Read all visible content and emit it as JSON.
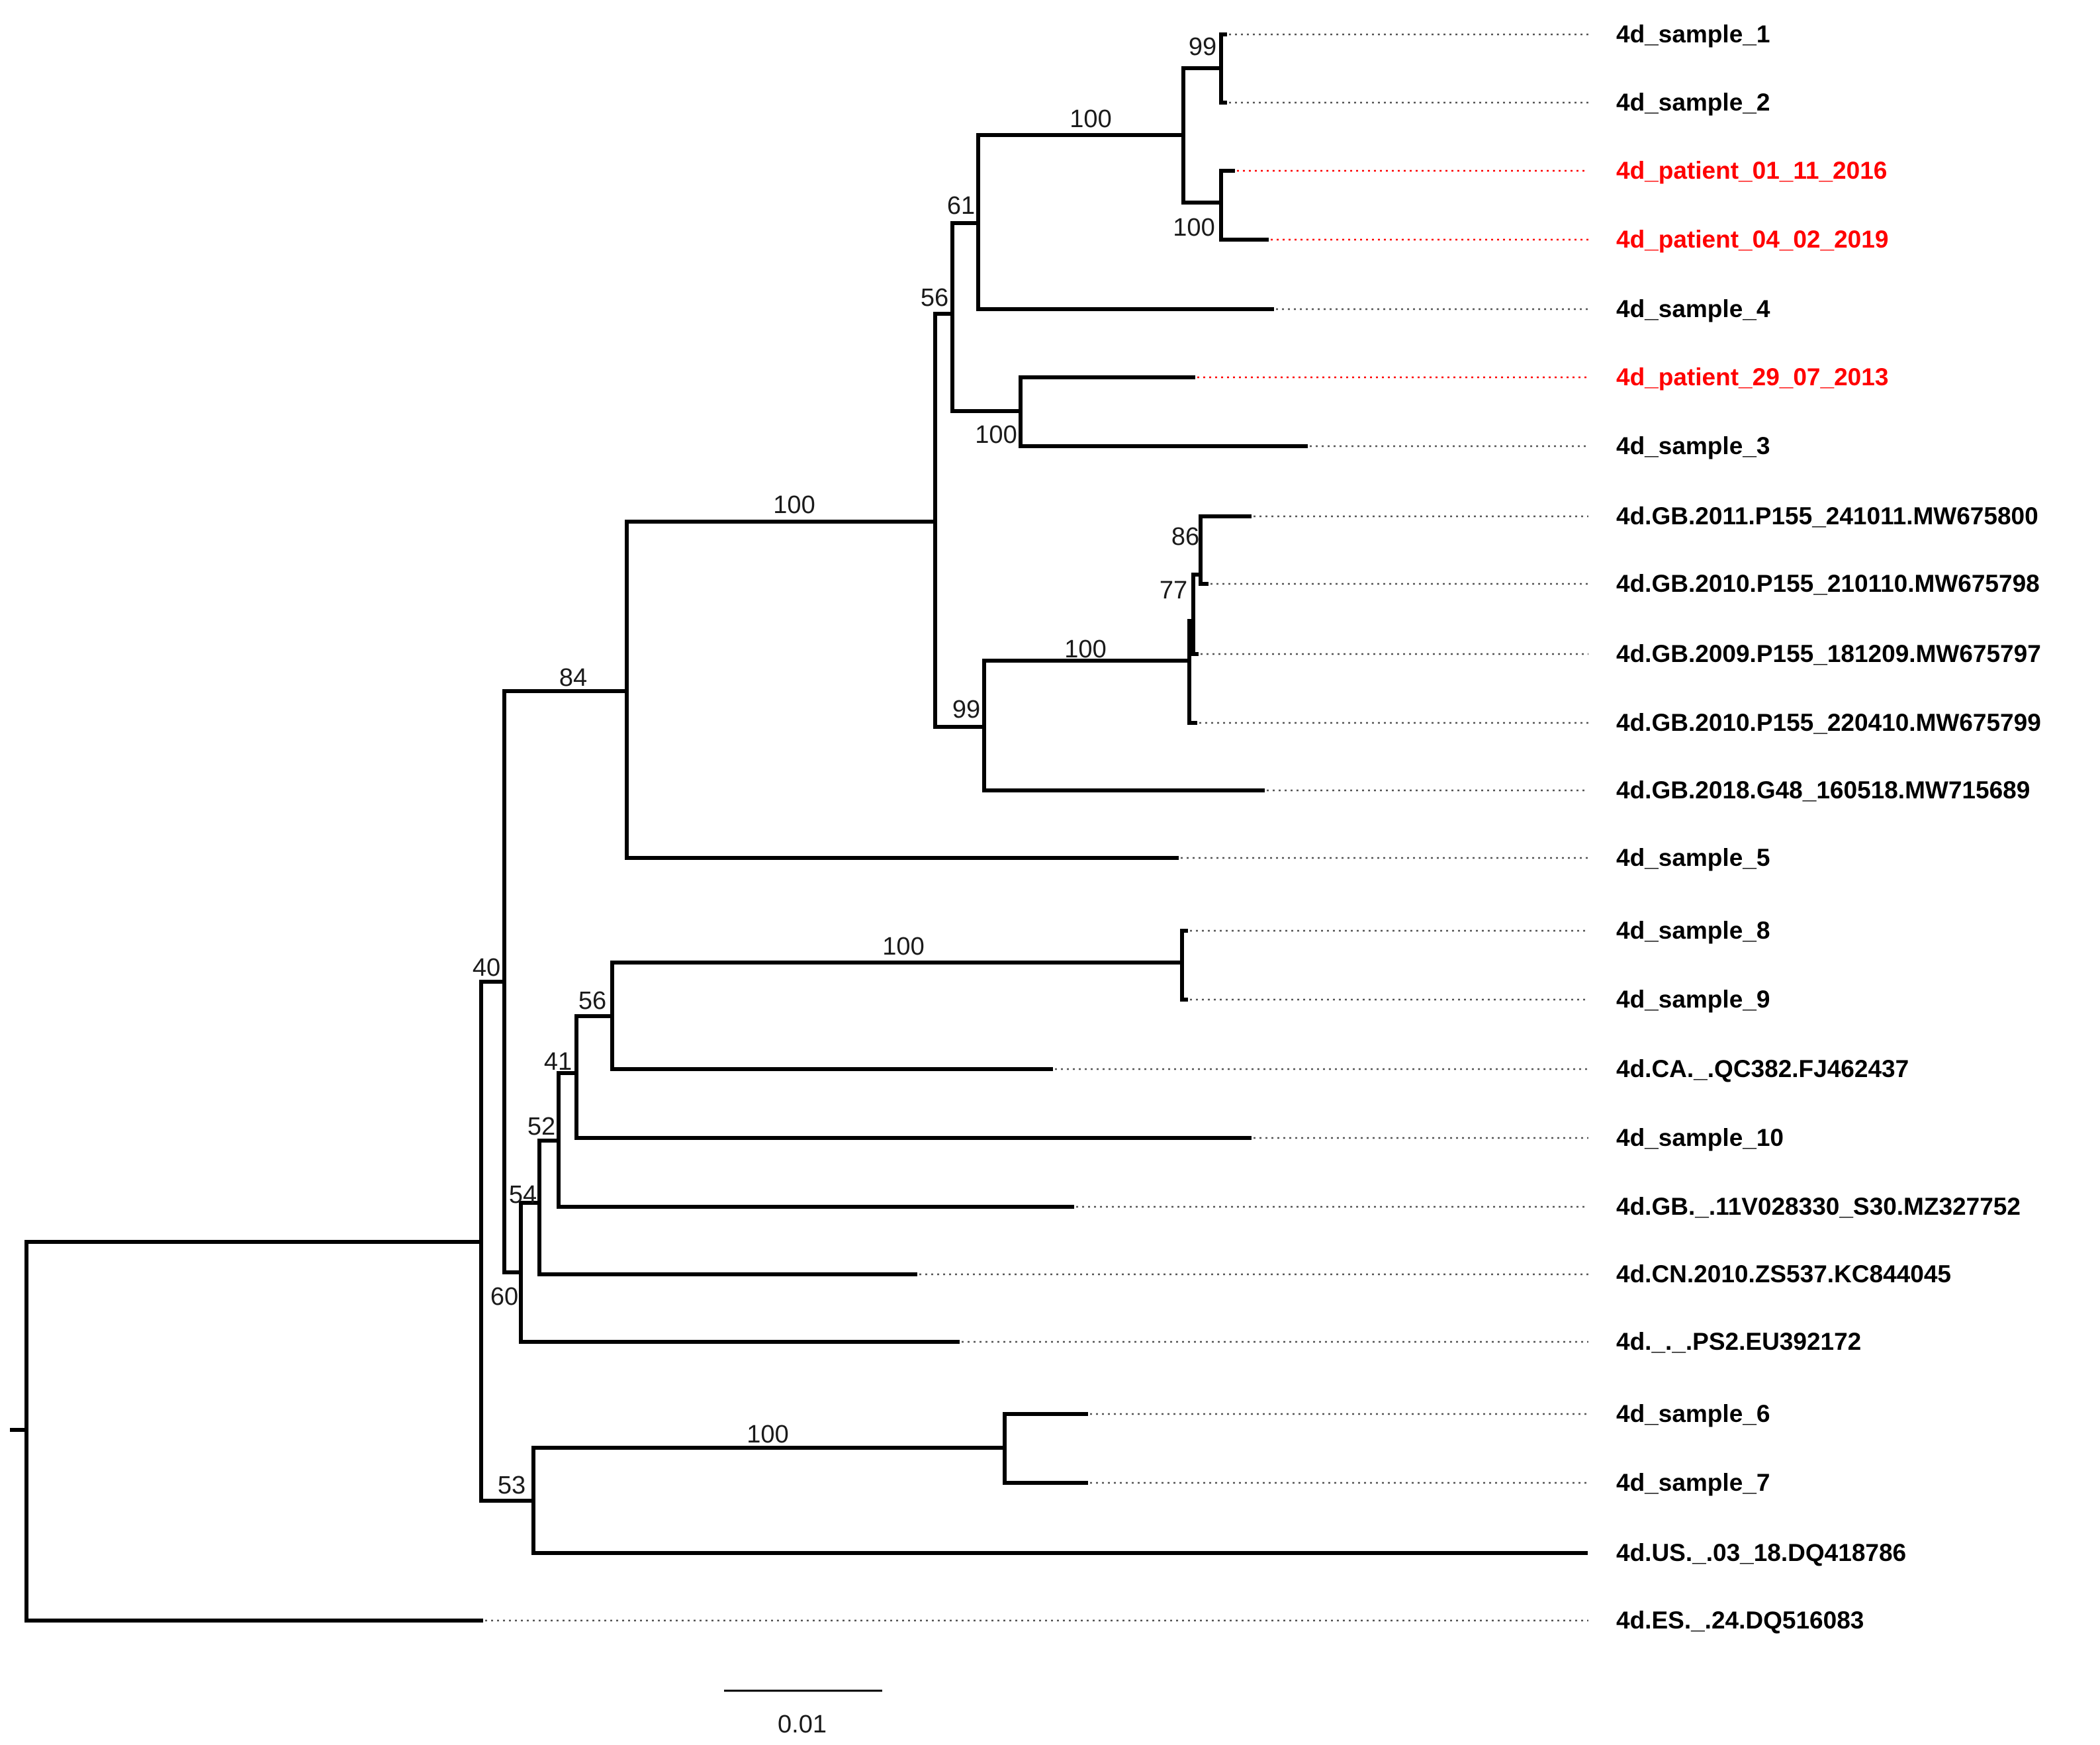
{
  "tree": {
    "scale_bar_label": "0.01",
    "highlight_color": "#ff0000",
    "default_color": "#000000",
    "leaves": [
      {
        "label": "4d_sample_1",
        "highlight": false
      },
      {
        "label": "4d_sample_2",
        "highlight": false
      },
      {
        "label": "4d_patient_01_11_2016",
        "highlight": true
      },
      {
        "label": "4d_patient_04_02_2019",
        "highlight": true
      },
      {
        "label": "4d_sample_4",
        "highlight": false
      },
      {
        "label": "4d_patient_29_07_2013",
        "highlight": true
      },
      {
        "label": "4d_sample_3",
        "highlight": false
      },
      {
        "label": "4d.GB.2011.P155_241011.MW675800",
        "highlight": false
      },
      {
        "label": "4d.GB.2010.P155_210110.MW675798",
        "highlight": false
      },
      {
        "label": "4d.GB.2009.P155_181209.MW675797",
        "highlight": false
      },
      {
        "label": "4d.GB.2010.P155_220410.MW675799",
        "highlight": false
      },
      {
        "label": "4d.GB.2018.G48_160518.MW715689",
        "highlight": false
      },
      {
        "label": "4d_sample_5",
        "highlight": false
      },
      {
        "label": "4d_sample_8",
        "highlight": false
      },
      {
        "label": "4d_sample_9",
        "highlight": false
      },
      {
        "label": "4d.CA._.QC382.FJ462437",
        "highlight": false
      },
      {
        "label": "4d_sample_10",
        "highlight": false
      },
      {
        "label": "4d.GB._.11V028330_S30.MZ327752",
        "highlight": false
      },
      {
        "label": "4d.CN.2010.ZS537.KC844045",
        "highlight": false
      },
      {
        "label": "4d._._.PS2.EU392172",
        "highlight": false
      },
      {
        "label": "4d_sample_6",
        "highlight": false
      },
      {
        "label": "4d_sample_7",
        "highlight": false
      },
      {
        "label": "4d.US._.03_18.DQ418786",
        "highlight": false
      },
      {
        "label": "4d.ES._.24.DQ516083",
        "highlight": false
      }
    ],
    "support_values": [
      "99",
      "100",
      "100",
      "61",
      "56",
      "100",
      "100",
      "86",
      "77",
      "100",
      "99",
      "84",
      "40",
      "100",
      "56",
      "41",
      "52",
      "54",
      "60",
      "100",
      "53"
    ]
  }
}
